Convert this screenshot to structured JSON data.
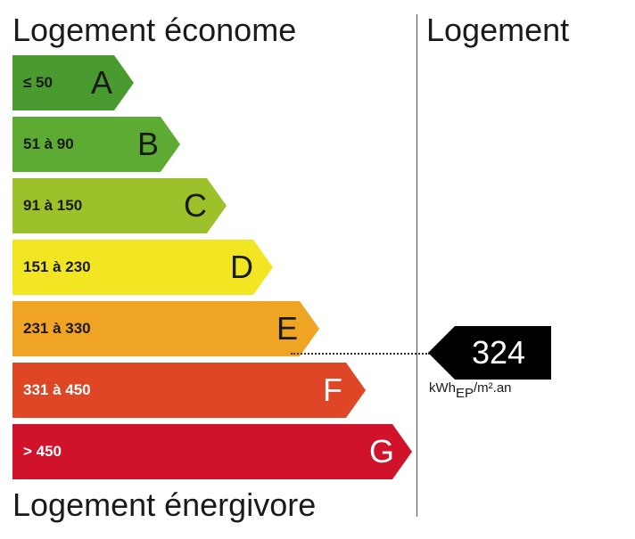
{
  "labels": {
    "top_left": "Logement économe",
    "top_right": "Logement",
    "bottom": "Logement énergivore"
  },
  "classes": [
    {
      "letter": "A",
      "range": "≤ 50",
      "color": "#4a9b2f"
    },
    {
      "letter": "B",
      "range": "51 à 90",
      "color": "#5eab34"
    },
    {
      "letter": "C",
      "range": "91 à 150",
      "color": "#9dc12a"
    },
    {
      "letter": "D",
      "range": "151 à 230",
      "color": "#f2e623"
    },
    {
      "letter": "E",
      "range": "231 à 330",
      "color": "#f0a424"
    },
    {
      "letter": "F",
      "range": "331 à 450",
      "color": "#de4626"
    },
    {
      "letter": "G",
      "range": "> 450",
      "color": "#d0122b"
    }
  ],
  "value": {
    "number": "324",
    "unit_main": "kWh",
    "unit_sub": "EP",
    "unit_tail": "/m².an",
    "class": "E",
    "color": "#000000"
  }
}
